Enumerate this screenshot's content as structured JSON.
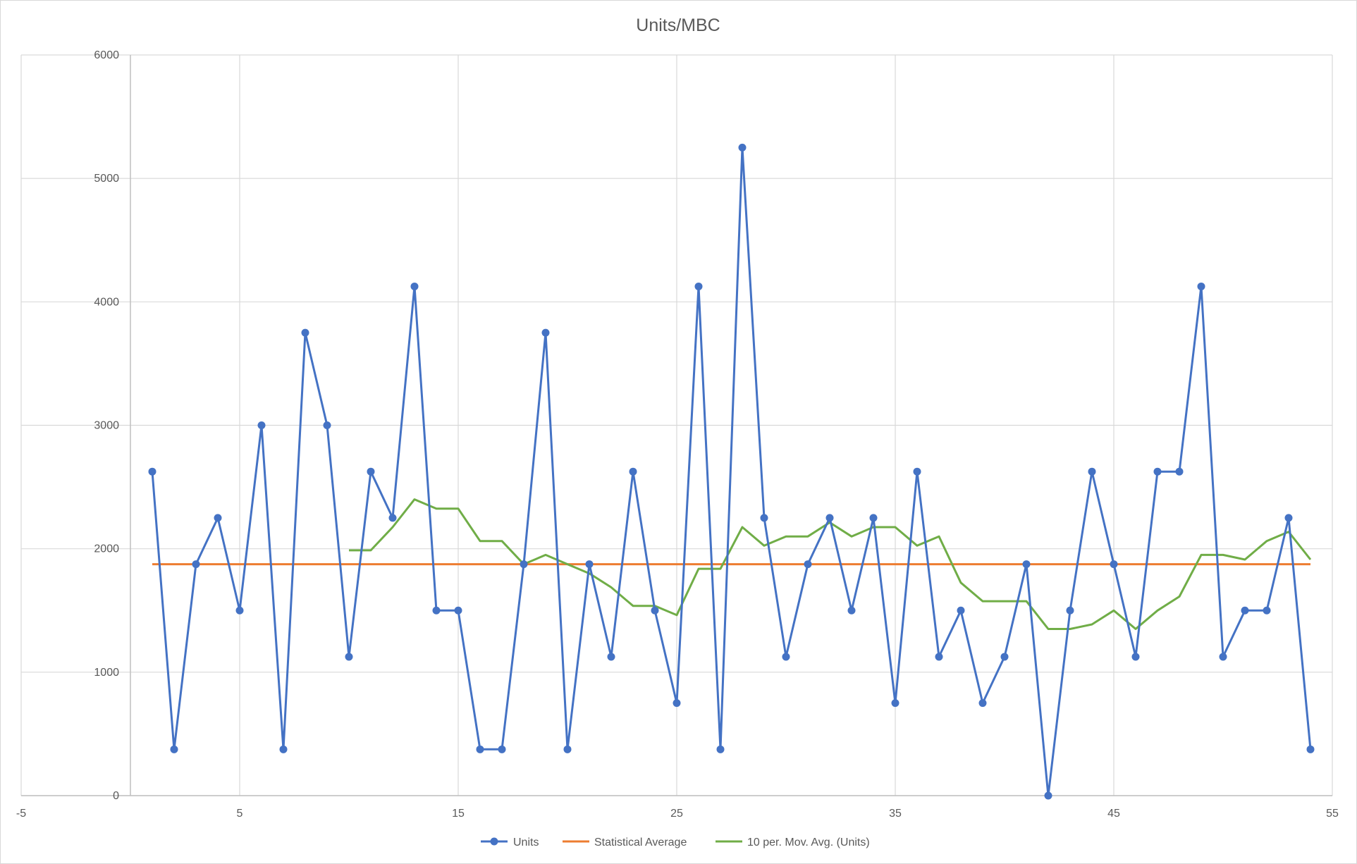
{
  "chart_data": {
    "type": "scatter",
    "title": "Units/MBC",
    "xlabel": "",
    "ylabel": "",
    "xlim": [
      -5,
      55
    ],
    "ylim": [
      0,
      6000
    ],
    "xticks": [
      -5,
      5,
      15,
      25,
      35,
      45,
      55
    ],
    "yticks": [
      0,
      1000,
      2000,
      3000,
      4000,
      5000,
      6000
    ],
    "grid": true,
    "legend_position": "bottom",
    "series": [
      {
        "name": "Units",
        "color": "#4472C4",
        "style": "line-markers",
        "x": [
          1,
          2,
          3,
          4,
          5,
          6,
          7,
          8,
          9,
          10,
          11,
          12,
          13,
          14,
          15,
          16,
          17,
          18,
          19,
          20,
          21,
          22,
          23,
          24,
          25,
          26,
          27,
          28,
          29,
          30,
          31,
          32,
          33,
          34,
          35,
          36,
          37,
          38,
          39,
          40,
          41,
          42,
          43,
          44,
          45,
          46,
          47,
          48,
          49,
          50,
          51,
          52,
          53,
          54
        ],
        "y": [
          2625,
          375,
          1875,
          2250,
          1500,
          3000,
          375,
          3750,
          3000,
          1125,
          2625,
          2250,
          4125,
          1500,
          1500,
          375,
          375,
          1875,
          3750,
          375,
          1875,
          1125,
          2625,
          1500,
          750,
          4125,
          375,
          5250,
          2250,
          1125,
          1875,
          2250,
          1500,
          2250,
          750,
          2625,
          1125,
          1500,
          750,
          1125,
          1875,
          0,
          1500,
          2625,
          1875,
          1125,
          2625,
          2625,
          4125,
          1125,
          1500,
          1500,
          2250,
          375
        ]
      },
      {
        "name": "Statistical Average",
        "color": "#ED7D31",
        "style": "line",
        "x": [
          1,
          54
        ],
        "y": [
          1875,
          1875
        ]
      },
      {
        "name": "10 per. Mov. Avg. (Units)",
        "color": "#70AD47",
        "style": "line",
        "x": [
          10,
          11,
          12,
          13,
          14,
          15,
          16,
          17,
          18,
          19,
          20,
          21,
          22,
          23,
          24,
          25,
          26,
          27,
          28,
          29,
          30,
          31,
          32,
          33,
          34,
          35,
          36,
          37,
          38,
          39,
          40,
          41,
          42,
          43,
          44,
          45,
          46,
          47,
          48,
          49,
          50,
          51,
          52,
          53,
          54
        ],
        "y": [
          1987.5,
          1987.5,
          2175,
          2400,
          2325,
          2325,
          2062.5,
          2062.5,
          1875,
          1950,
          1875,
          1800,
          1687.5,
          1537.5,
          1537.5,
          1462.5,
          1837.5,
          1837.5,
          2175,
          2025,
          2100,
          2100,
          2212.5,
          2100,
          2175,
          2175,
          2025,
          2100,
          1725,
          1575,
          1575,
          1575,
          1350,
          1350,
          1387.5,
          1500,
          1350,
          1500,
          1612.5,
          1950,
          1950,
          1912.5,
          2062.5,
          2137.5,
          1912.5
        ]
      }
    ]
  }
}
